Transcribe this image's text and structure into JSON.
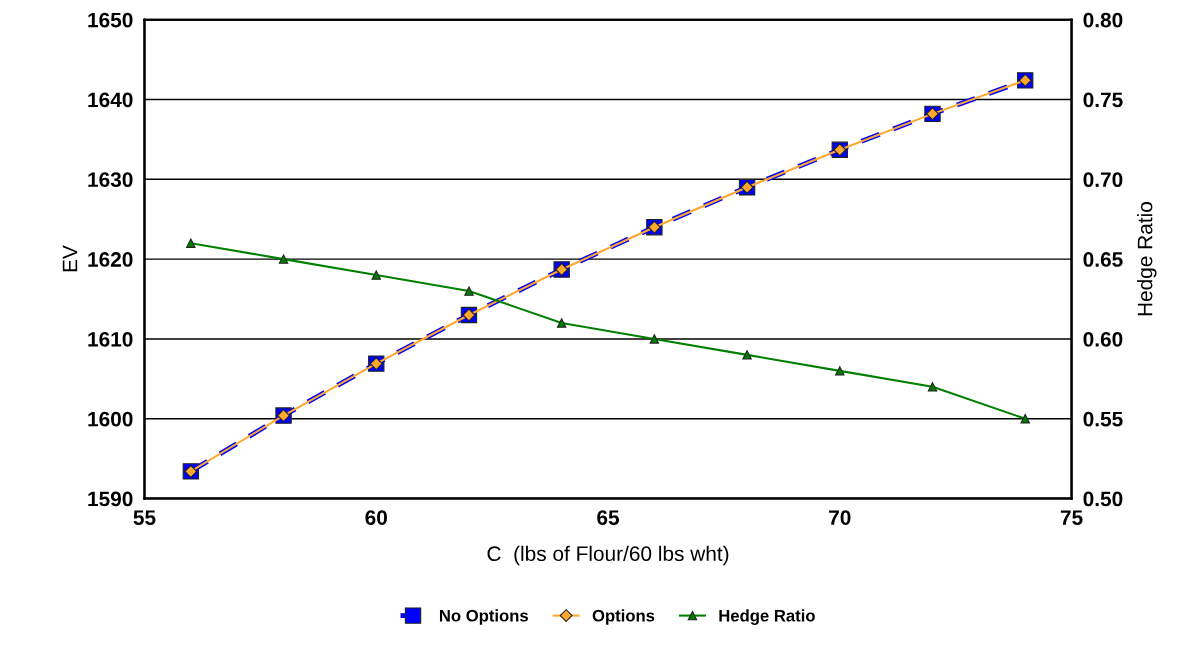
{
  "chart_data": {
    "type": "line",
    "xlabel": "C  (lbs of Flour/60 lbs wht)",
    "ylabel": "EV",
    "y2label": "Hedge Ratio",
    "x": [
      56,
      58,
      60,
      62,
      64,
      66,
      68,
      70,
      72,
      74
    ],
    "series": [
      {
        "name": "No Options",
        "color": "#0000ff",
        "marker": "square",
        "line_style": "dashed",
        "values": [
          1593.4,
          1600.4,
          1606.9,
          1613.0,
          1618.7,
          1624.0,
          1629.0,
          1633.7,
          1638.2,
          1642.4
        ]
      },
      {
        "name": "Options",
        "color": "#ffa830",
        "marker": "diamond",
        "line_style": "solid",
        "values": [
          1593.4,
          1600.4,
          1606.9,
          1613.0,
          1618.7,
          1624.0,
          1629.0,
          1633.7,
          1638.2,
          1642.4
        ]
      },
      {
        "name": "Hedge Ratio",
        "color": "#008000",
        "marker": "triangle",
        "line_style": "solid",
        "axis": "y2",
        "values": [
          0.66,
          0.65,
          0.64,
          0.63,
          0.61,
          0.6,
          0.59,
          0.58,
          0.57,
          0.55
        ]
      }
    ],
    "xlim": [
      55,
      75
    ],
    "xticks": [
      55,
      60,
      65,
      70,
      75
    ],
    "ylim": [
      1590,
      1650
    ],
    "yticks": [
      1590,
      1600,
      1610,
      1620,
      1630,
      1640,
      1650
    ],
    "y2lim": [
      0.5,
      0.8
    ],
    "y2ticks": [
      {
        "value": 0.5,
        "label": "0.50"
      },
      {
        "value": 0.55,
        "label": "0.55"
      },
      {
        "value": 0.6,
        "label": "0.60"
      },
      {
        "value": 0.65,
        "label": "0.65"
      },
      {
        "value": 0.7,
        "label": "0.70"
      },
      {
        "value": 0.75,
        "label": "0.75"
      },
      {
        "value": 0.8,
        "label": "0.80"
      }
    ],
    "grid": "y",
    "legend": "bottom"
  }
}
